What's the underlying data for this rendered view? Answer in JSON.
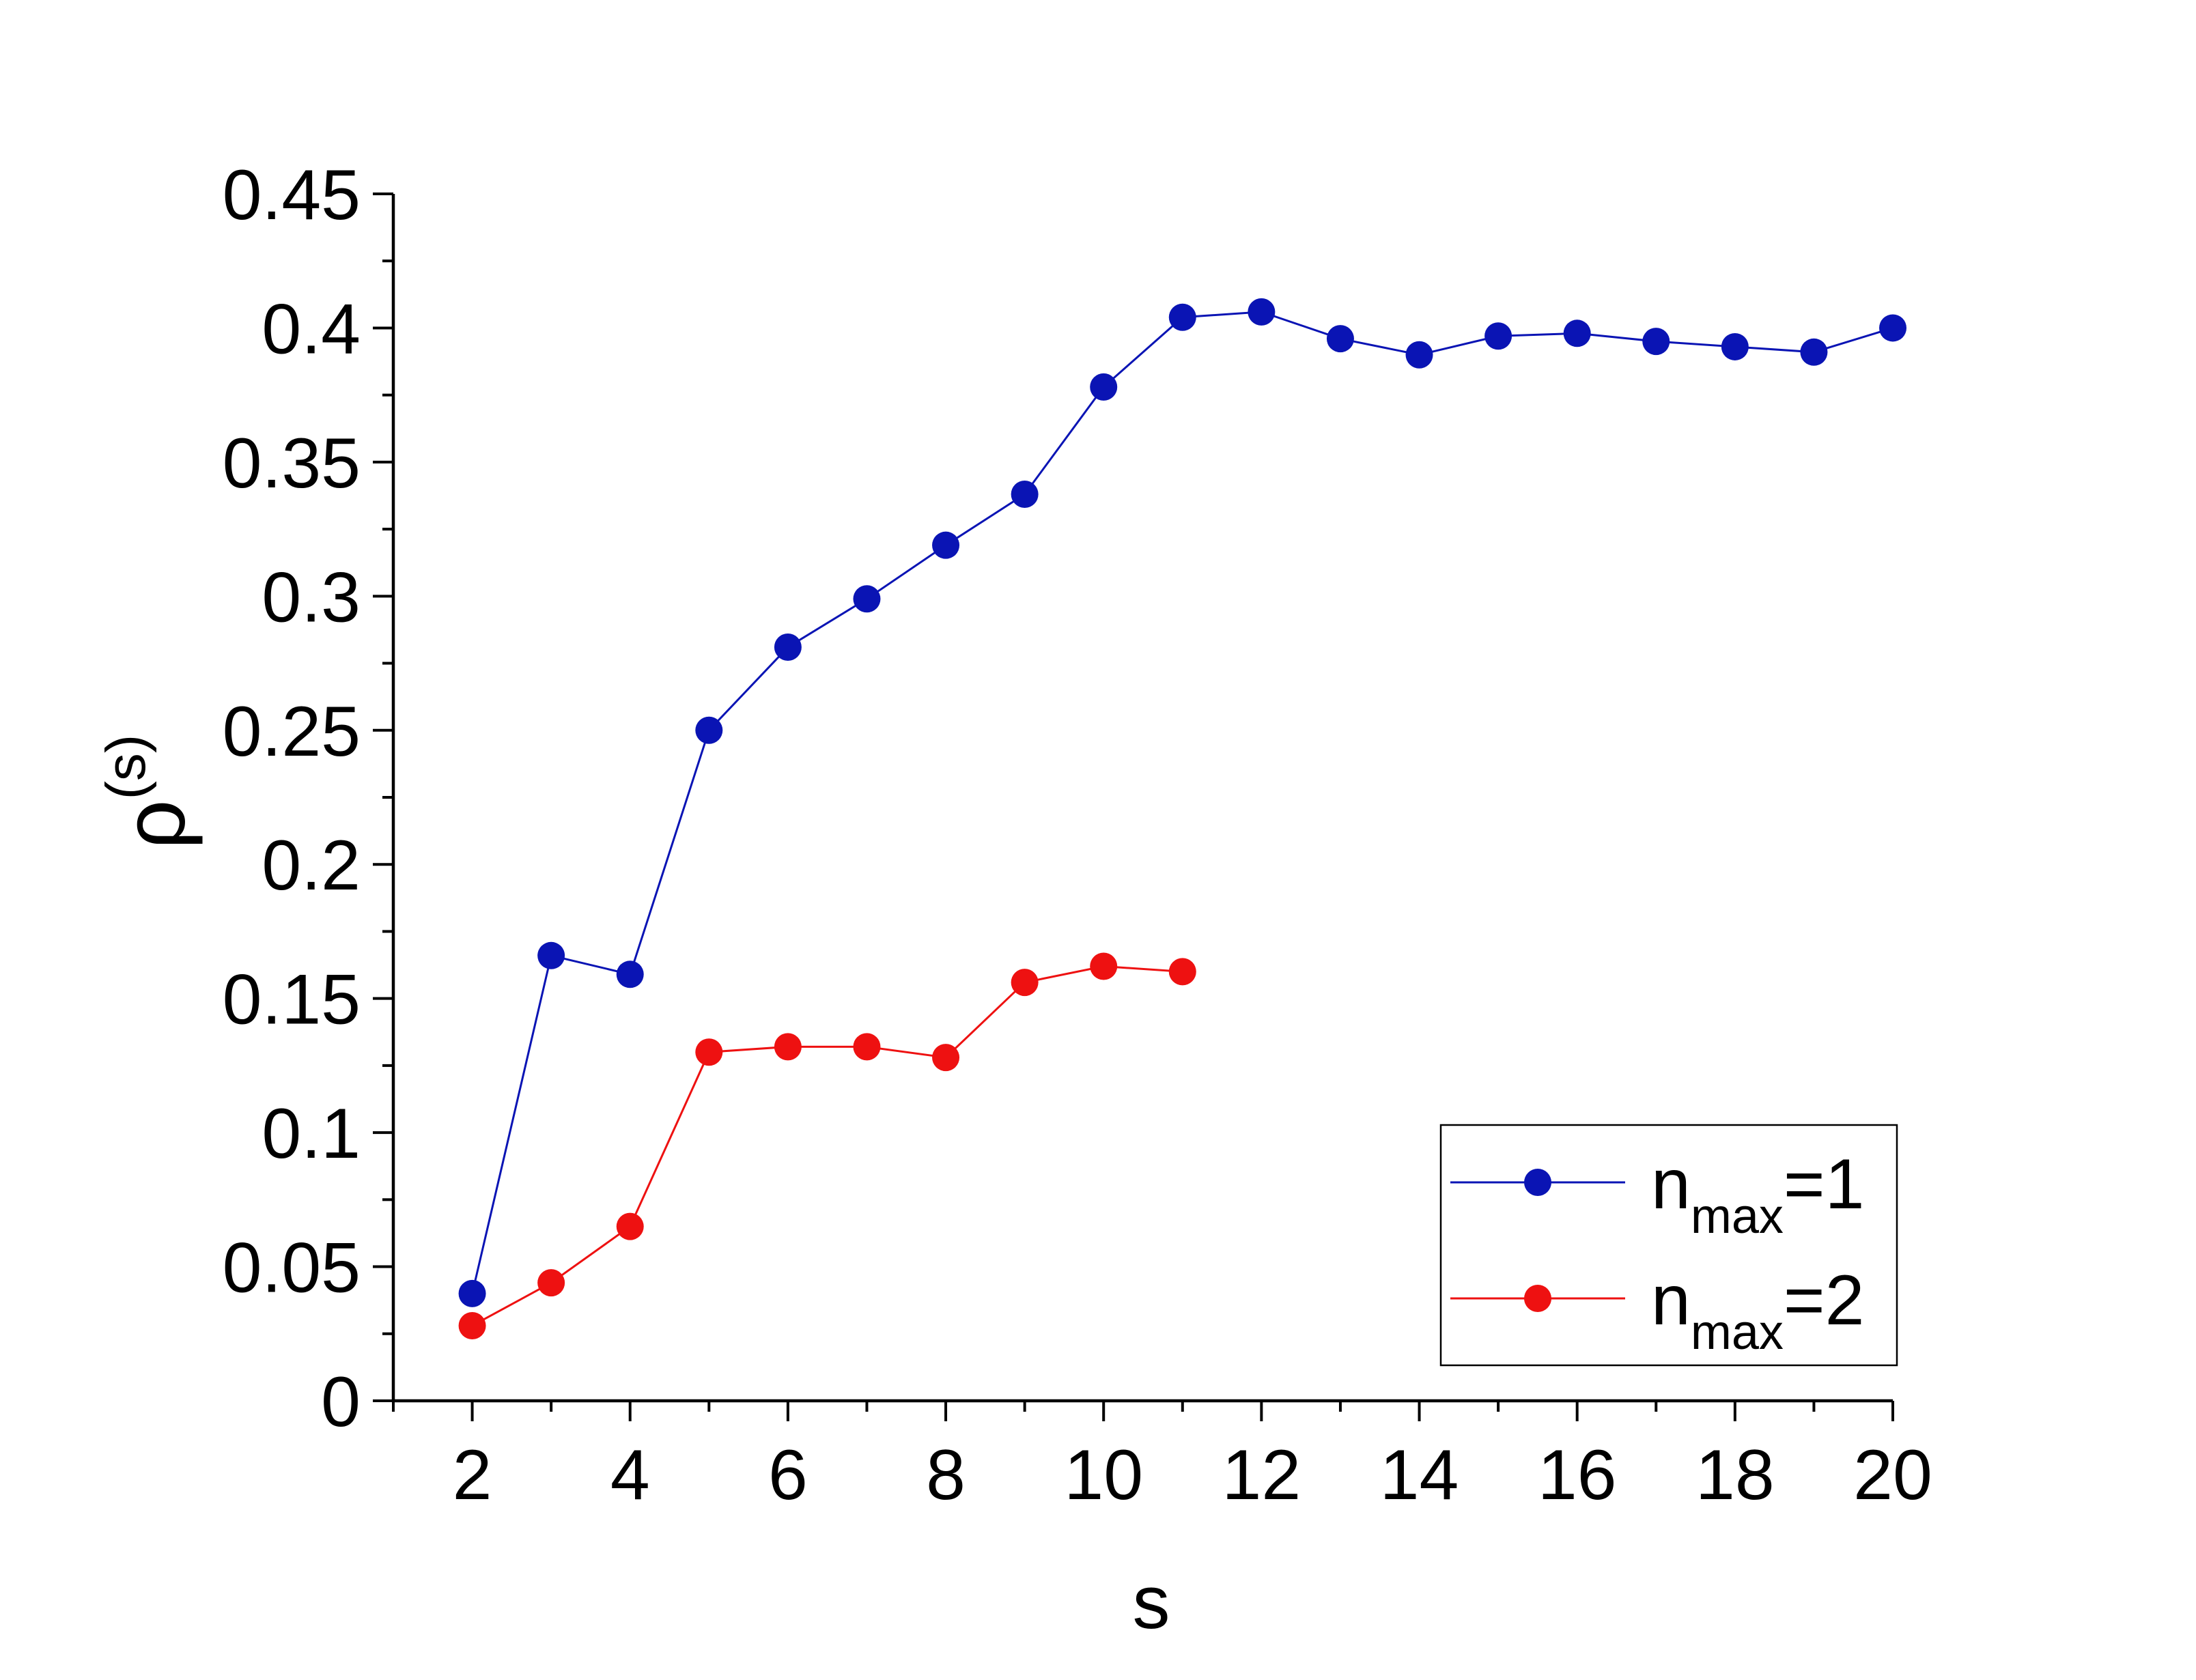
{
  "chart_data": {
    "type": "line",
    "xlabel": "s",
    "ylabel_base": "ρ",
    "ylabel_sup": "(s)",
    "xlim": [
      1,
      20
    ],
    "ylim": [
      0,
      0.45
    ],
    "xticks": [
      2,
      4,
      6,
      8,
      10,
      12,
      14,
      16,
      18,
      20
    ],
    "xtick_labels": [
      "2",
      "4",
      "6",
      "8",
      "10",
      "12",
      "14",
      "16",
      "18",
      "20"
    ],
    "yticks": [
      0,
      0.05,
      0.1,
      0.15,
      0.2,
      0.25,
      0.3,
      0.35,
      0.4,
      0.45
    ],
    "ytick_labels": [
      "0",
      "0.05",
      "0.1",
      "0.15",
      "0.2",
      "0.25",
      "0.3",
      "0.35",
      "0.4",
      "0.45"
    ],
    "legend_position": "bottom-right",
    "grid": false,
    "series": [
      {
        "name_base": "n",
        "name_sub": "max",
        "name_suffix": "=1",
        "color": "#0a14b4",
        "x": [
          2,
          3,
          4,
          5,
          6,
          7,
          8,
          9,
          10,
          11,
          12,
          13,
          14,
          15,
          16,
          17,
          18,
          19,
          20
        ],
        "y": [
          0.04,
          0.166,
          0.159,
          0.25,
          0.281,
          0.299,
          0.319,
          0.338,
          0.378,
          0.404,
          0.406,
          0.396,
          0.39,
          0.397,
          0.398,
          0.395,
          0.393,
          0.391,
          0.4
        ]
      },
      {
        "name_base": "n",
        "name_sub": "max",
        "name_suffix": "=2",
        "color": "#ee1111",
        "x": [
          2,
          3,
          4,
          5,
          6,
          7,
          8,
          9,
          10,
          11
        ],
        "y": [
          0.028,
          0.044,
          0.065,
          0.13,
          0.132,
          0.132,
          0.128,
          0.156,
          0.162,
          0.16
        ]
      }
    ]
  }
}
